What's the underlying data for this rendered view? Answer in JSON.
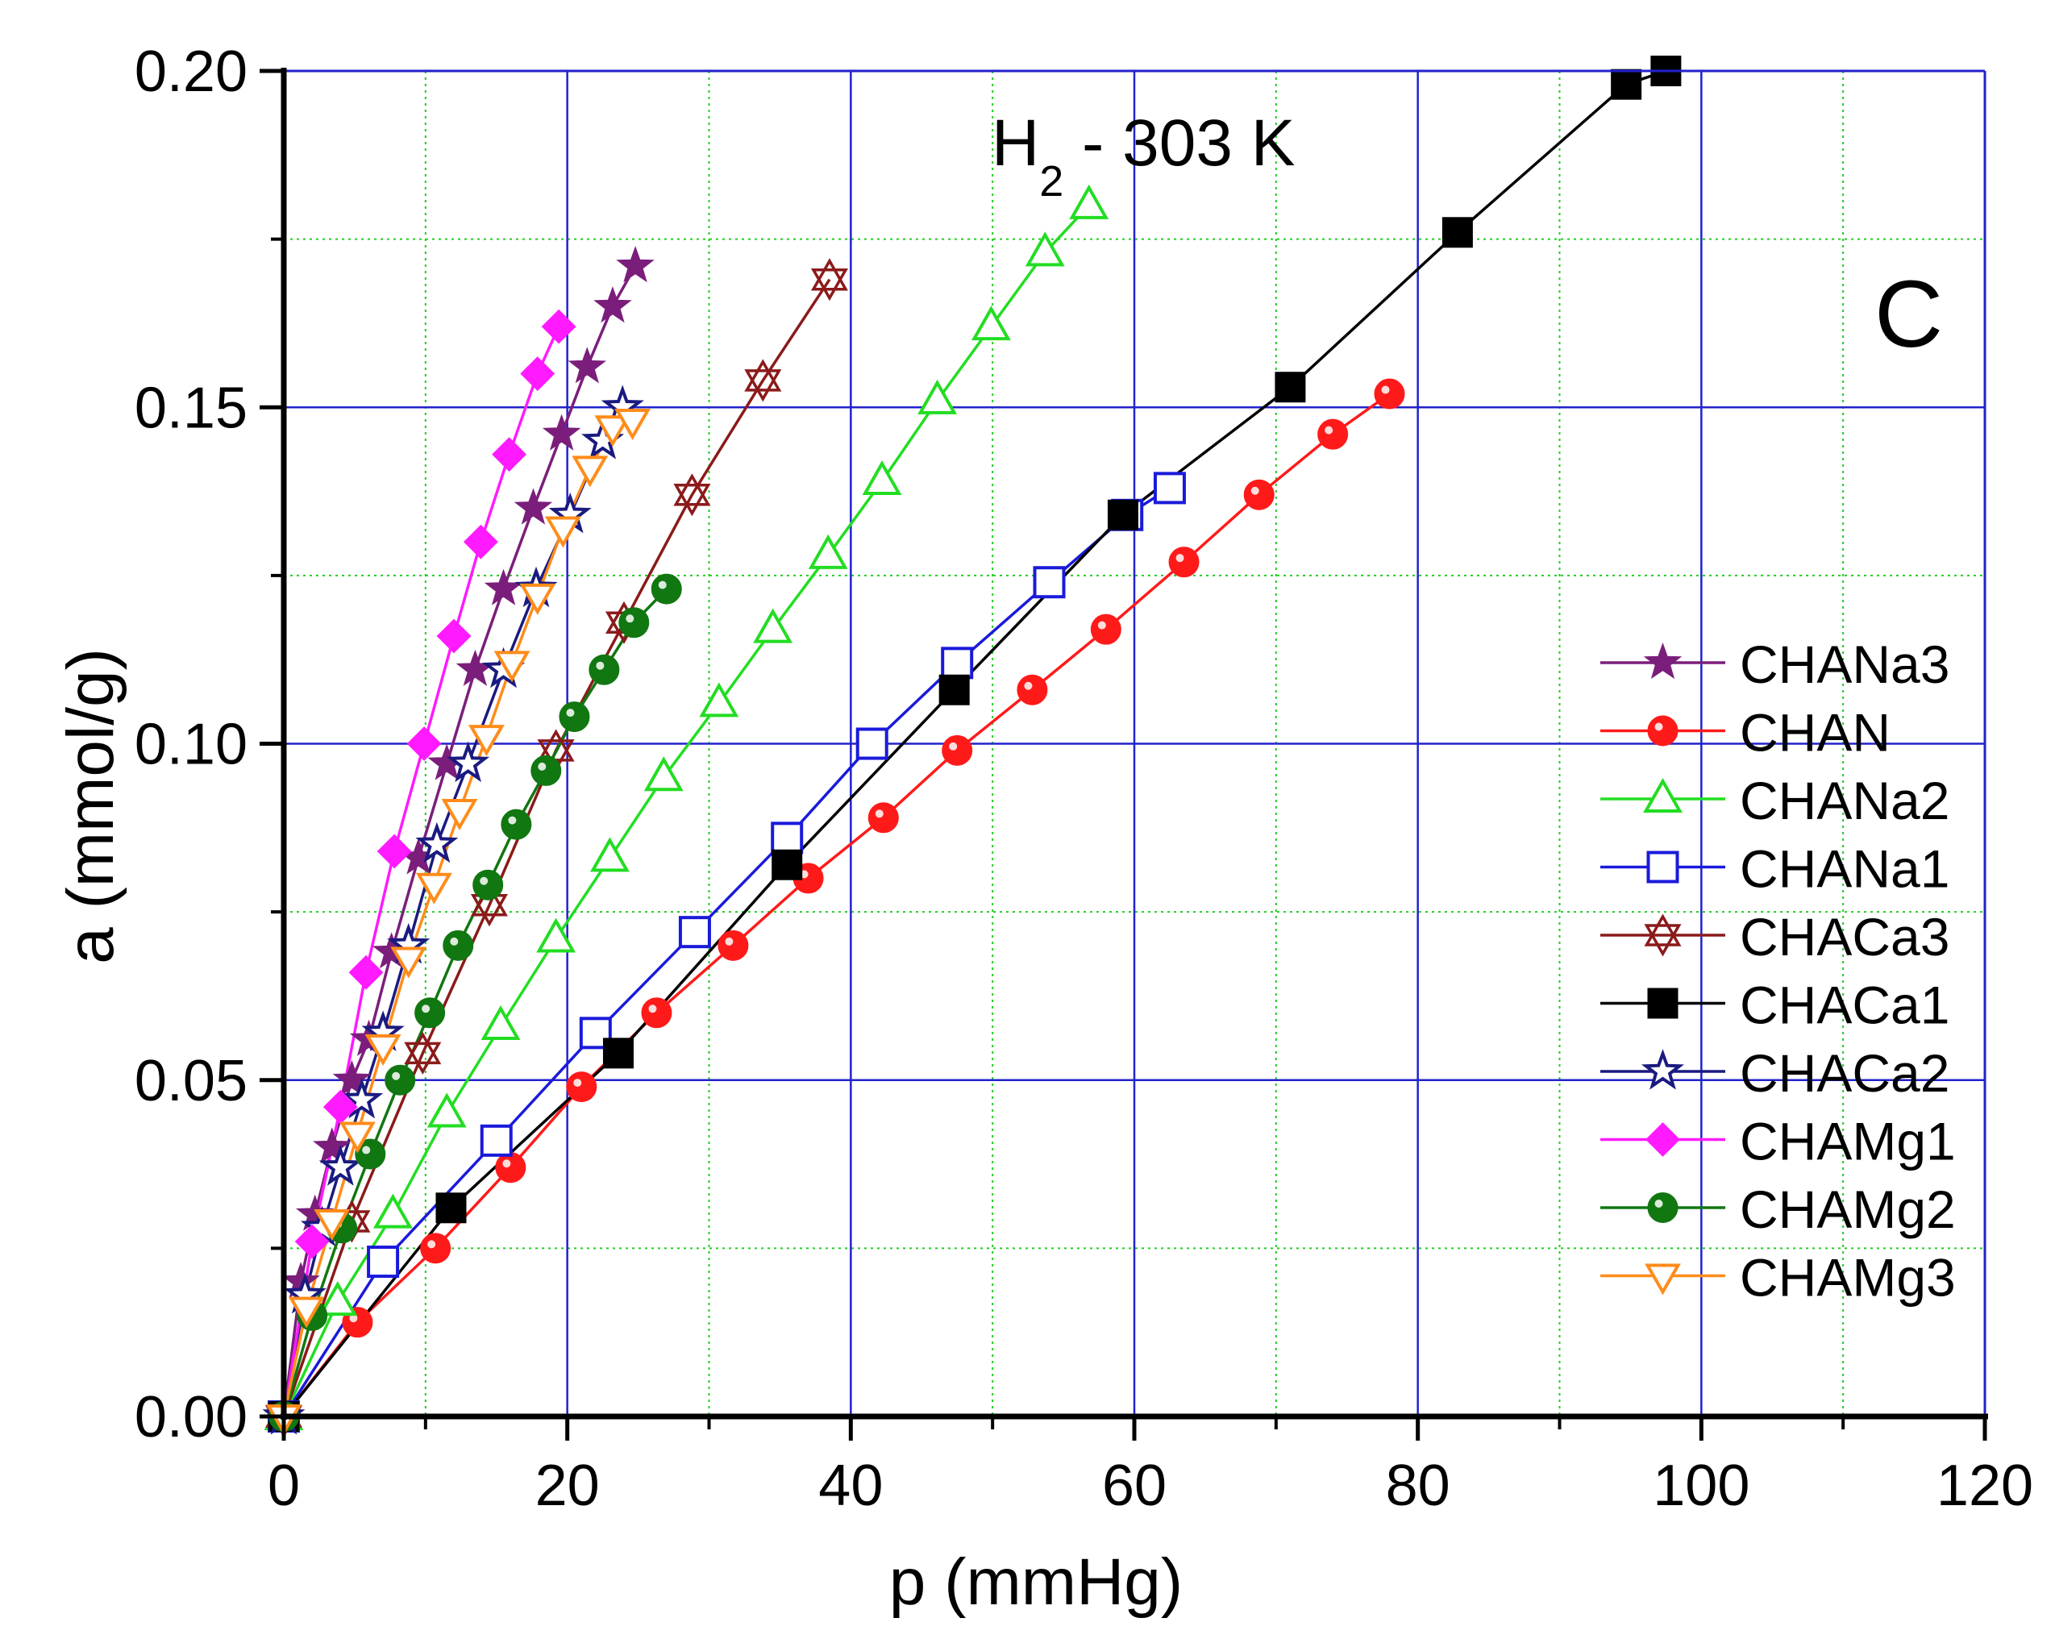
{
  "chart_data": {
    "type": "line",
    "title": "H",
    "title_sub": "2",
    "title_suffix": " - 303 K",
    "panel_label": "C",
    "xlabel": "p (mmHg)",
    "ylabel": "a (mmol/g)",
    "xlim": [
      0,
      120
    ],
    "ylim": [
      0,
      0.2
    ],
    "xticks": [
      0,
      20,
      40,
      60,
      80,
      100,
      120
    ],
    "yticks": [
      0.0,
      0.05,
      0.1,
      0.15,
      0.2
    ],
    "ytick_labels": [
      "0.00",
      "0.05",
      "0.10",
      "0.15",
      "0.20"
    ],
    "grid": true,
    "legend_position": "right",
    "series": [
      {
        "name": "CHANa3",
        "color": "#7b1e7b",
        "marker": "star-filled",
        "x": [
          0,
          1.2,
          2.2,
          3.4,
          4.8,
          6.0,
          7.6,
          9.5,
          11.5,
          13.5,
          15.5,
          17.6,
          19.6,
          21.4,
          23.2,
          24.8
        ],
        "y": [
          0,
          0.02,
          0.03,
          0.04,
          0.05,
          0.056,
          0.069,
          0.083,
          0.097,
          0.111,
          0.123,
          0.135,
          0.146,
          0.156,
          0.165,
          0.171
        ]
      },
      {
        "name": "CHAN",
        "color": "#ff1a1a",
        "marker": "circle-filled",
        "x": [
          0,
          5.2,
          10.7,
          16.0,
          21.0,
          26.3,
          31.7,
          37.0,
          42.3,
          47.5,
          52.8,
          58.0,
          63.5,
          68.8,
          74.0,
          78.0
        ],
        "y": [
          0,
          0.014,
          0.025,
          0.037,
          0.049,
          0.06,
          0.07,
          0.08,
          0.089,
          0.099,
          0.108,
          0.117,
          0.127,
          0.137,
          0.146,
          0.152
        ]
      },
      {
        "name": "CHANa2",
        "color": "#22dd22",
        "marker": "triangle-up-open",
        "x": [
          0,
          3.8,
          7.7,
          11.5,
          15.3,
          19.2,
          23.0,
          26.8,
          30.7,
          34.5,
          38.4,
          42.2,
          46.1,
          49.9,
          53.7,
          56.8
        ],
        "y": [
          0,
          0.017,
          0.03,
          0.045,
          0.058,
          0.071,
          0.083,
          0.095,
          0.106,
          0.117,
          0.128,
          0.139,
          0.151,
          0.162,
          0.173,
          0.18
        ]
      },
      {
        "name": "CHANa1",
        "color": "#1a1adb",
        "marker": "square-open",
        "x": [
          0,
          7.0,
          15.0,
          22.0,
          29.0,
          35.5,
          41.5,
          47.5,
          54.0,
          59.5,
          62.5
        ],
        "y": [
          0,
          0.023,
          0.041,
          0.057,
          0.072,
          0.086,
          0.1,
          0.112,
          0.124,
          0.134,
          0.138
        ]
      },
      {
        "name": "CHACa3",
        "color": "#8b1a1a",
        "marker": "hexagram-open",
        "x": [
          0,
          4.8,
          9.8,
          14.5,
          19.2,
          24.0,
          28.8,
          33.8,
          38.5
        ],
        "y": [
          0,
          0.029,
          0.054,
          0.076,
          0.099,
          0.118,
          0.137,
          0.154,
          0.169
        ]
      },
      {
        "name": "CHACa1",
        "color": "#000000",
        "marker": "square-filled",
        "x": [
          0,
          11.8,
          23.6,
          35.5,
          47.3,
          59.2,
          71.0,
          82.8,
          94.7,
          97.5
        ],
        "y": [
          0,
          0.031,
          0.054,
          0.082,
          0.108,
          0.134,
          0.153,
          0.176,
          0.198,
          0.2
        ]
      },
      {
        "name": "CHACa2",
        "color": "#1a1a80",
        "marker": "star-open",
        "x": [
          0,
          1.5,
          2.7,
          4.0,
          5.5,
          7.0,
          8.8,
          10.8,
          13.0,
          15.5,
          17.8,
          20.2,
          22.5,
          23.9
        ],
        "y": [
          0,
          0.018,
          0.028,
          0.037,
          0.047,
          0.057,
          0.07,
          0.085,
          0.097,
          0.111,
          0.123,
          0.134,
          0.145,
          0.15
        ]
      },
      {
        "name": "CHAMg1",
        "color": "#ff1aff",
        "marker": "diamond-filled",
        "x": [
          0,
          2.0,
          4.0,
          5.8,
          7.8,
          9.9,
          12.0,
          13.9,
          15.9,
          17.9,
          19.4
        ],
        "y": [
          0,
          0.026,
          0.046,
          0.066,
          0.084,
          0.1,
          0.116,
          0.13,
          0.143,
          0.155,
          0.162
        ]
      },
      {
        "name": "CHAMg2",
        "color": "#117711",
        "marker": "circle-filled",
        "x": [
          0,
          2.0,
          4.1,
          6.1,
          8.2,
          10.3,
          12.3,
          14.4,
          16.4,
          18.5,
          20.5,
          22.6,
          24.7,
          27.0
        ],
        "y": [
          0,
          0.015,
          0.028,
          0.039,
          0.05,
          0.06,
          0.07,
          0.079,
          0.088,
          0.096,
          0.104,
          0.111,
          0.118,
          0.123
        ]
      },
      {
        "name": "CHAMg3",
        "color": "#ff8c1a",
        "marker": "triangle-down-open",
        "x": [
          0,
          1.6,
          3.4,
          5.2,
          7.0,
          8.8,
          10.6,
          12.4,
          14.3,
          16.1,
          17.9,
          19.7,
          21.6,
          23.2,
          24.6
        ],
        "y": [
          0,
          0.016,
          0.029,
          0.042,
          0.055,
          0.068,
          0.079,
          0.09,
          0.101,
          0.112,
          0.122,
          0.132,
          0.141,
          0.147,
          0.148
        ]
      }
    ]
  }
}
